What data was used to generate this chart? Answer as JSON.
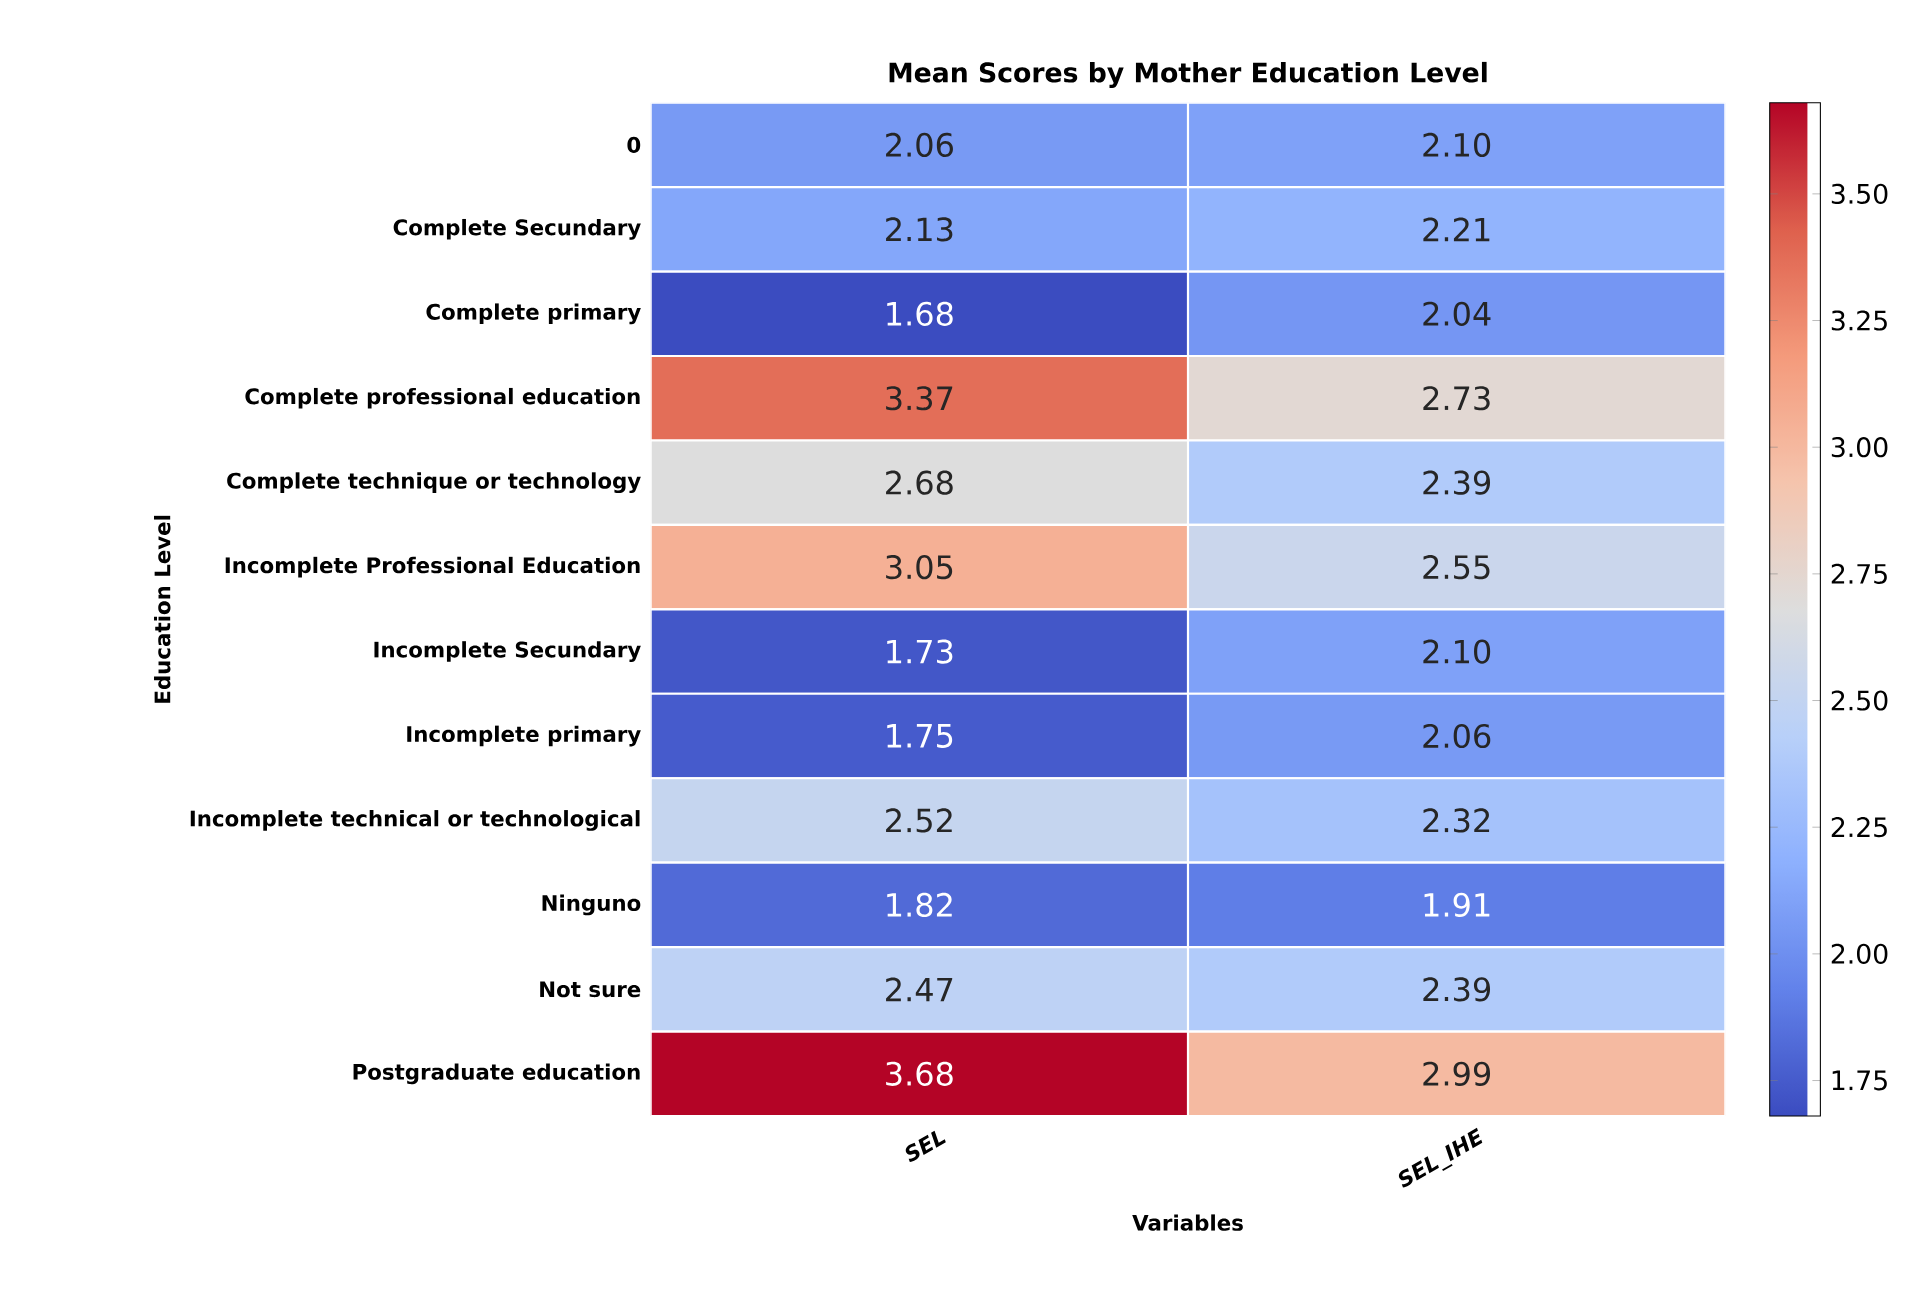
{
  "chart_data": {
    "type": "heatmap",
    "title": "Mean Scores by Mother Education Level",
    "xlabel": "Variables",
    "ylabel": "Education Level",
    "categories": [
      "SEL",
      "SEL_IHE"
    ],
    "y_categories": [
      "0",
      "Complete Secundary",
      "Complete primary",
      "Complete professional education",
      "Complete technique or technology",
      "Incomplete Professional Education",
      "Incomplete Secundary",
      "Incomplete primary",
      "Incomplete technical or technological",
      "Ninguno",
      "Not sure",
      "Postgraduate education"
    ],
    "cells": [
      [
        2.06,
        2.1
      ],
      [
        2.13,
        2.21
      ],
      [
        1.68,
        2.04
      ],
      [
        3.37,
        2.73
      ],
      [
        2.68,
        2.39
      ],
      [
        3.05,
        2.55
      ],
      [
        1.73,
        2.1
      ],
      [
        1.75,
        2.06
      ],
      [
        2.52,
        2.32
      ],
      [
        1.82,
        1.91
      ],
      [
        2.47,
        2.39
      ],
      [
        3.68,
        2.99
      ]
    ],
    "clim": [
      1.68,
      3.68
    ],
    "cticks": [
      1.75,
      {
        "value": 2.0,
        "label": "2.00"
      },
      2.25,
      {
        "value": 2.5,
        "label": "2.50"
      },
      2.75,
      {
        "value": 3.0,
        "label": "3.00"
      },
      3.25,
      {
        "value": 3.5,
        "label": "3.50"
      }
    ],
    "cell_labels": [
      [
        "2.06",
        "2.10"
      ],
      [
        "2.13",
        "2.21"
      ],
      [
        "1.68",
        "2.04"
      ],
      [
        "3.37",
        "2.73"
      ],
      [
        "2.68",
        "2.39"
      ],
      [
        "3.05",
        "2.55"
      ],
      [
        "1.73",
        "2.10"
      ],
      [
        "1.75",
        "2.06"
      ],
      [
        "2.52",
        "2.32"
      ],
      [
        "1.82",
        "1.91"
      ],
      [
        "2.47",
        "2.39"
      ],
      [
        "3.68",
        "2.99"
      ]
    ]
  }
}
